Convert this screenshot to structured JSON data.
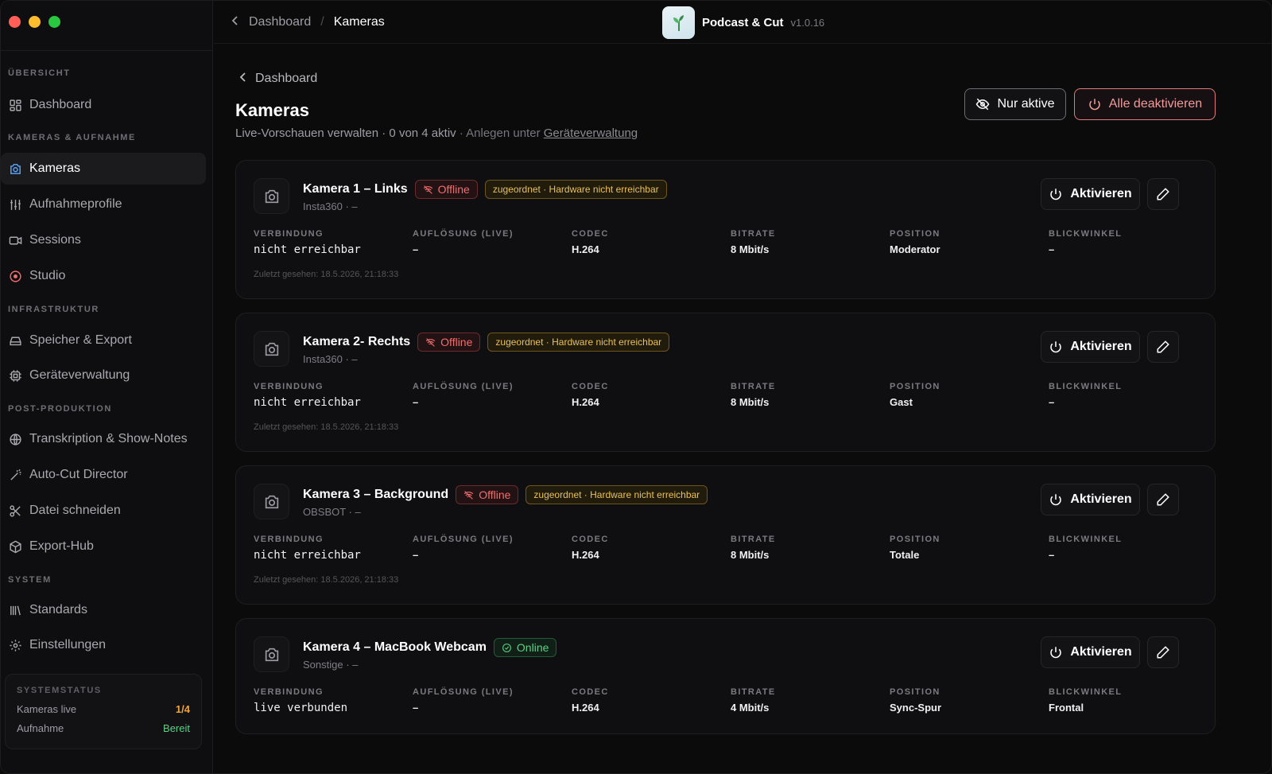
{
  "colors": {
    "accent_red": "#f16e6e",
    "accent_green": "#5ed087",
    "warn_yellow": "#e8c15a",
    "traffic_close": "#ff5f57",
    "traffic_min": "#febc2e",
    "traffic_max": "#28c840"
  },
  "sidebar": {
    "sections": [
      {
        "title": "ÜBERSICHT",
        "items": [
          {
            "label": "Dashboard",
            "icon": "grid-icon"
          }
        ]
      },
      {
        "title": "KAMERAS & AUFNAHME",
        "items": [
          {
            "label": "Kameras",
            "icon": "camera-icon",
            "active": true
          },
          {
            "label": "Aufnahmeprofile",
            "icon": "sliders-icon"
          },
          {
            "label": "Sessions",
            "icon": "video-icon"
          },
          {
            "label": "Studio",
            "icon": "record-icon"
          }
        ]
      },
      {
        "title": "INFRASTRUKTUR",
        "items": [
          {
            "label": "Speicher & Export",
            "icon": "drive-icon"
          },
          {
            "label": "Geräteverwaltung",
            "icon": "cpu-icon"
          }
        ]
      },
      {
        "title": "POST-PRODUKTION",
        "items": [
          {
            "label": "Transkription & Show-Notes",
            "icon": "globe-icon"
          },
          {
            "label": "Auto-Cut Director",
            "icon": "wand-icon"
          },
          {
            "label": "Datei schneiden",
            "icon": "scissors-icon"
          },
          {
            "label": "Export-Hub",
            "icon": "package-icon"
          }
        ]
      },
      {
        "title": "SYSTEM",
        "items": [
          {
            "label": "Standards",
            "icon": "library-icon"
          },
          {
            "label": "Einstellungen",
            "icon": "gear-icon"
          }
        ]
      }
    ],
    "status": {
      "title": "SYSTEMSTATUS",
      "rows": [
        {
          "label": "Kameras live",
          "value": "1/4"
        },
        {
          "label": "Aufnahme",
          "value": "Bereit"
        }
      ]
    }
  },
  "topbar": {
    "breadcrumb_parent": "Dashboard",
    "breadcrumb_sep": "/",
    "breadcrumb_current": "Kameras",
    "app_name": "Podcast & Cut",
    "app_version": "v1.0.16"
  },
  "page": {
    "back_label": "Dashboard",
    "title": "Kameras",
    "subtitle_main": "Live-Vorschauen verwalten · 0 von 4 aktiv",
    "subtitle_hint": " · Anlegen unter ",
    "subtitle_link": "Geräteverwaltung",
    "btn_only_active": "Nur aktive",
    "btn_deactivate_all": "Alle deaktivieren"
  },
  "field_labels": {
    "connection": "VERBINDUNG",
    "resolution": "AUFLÖSUNG (LIVE)",
    "codec": "CODEC",
    "bitrate": "BITRATE",
    "position": "POSITION",
    "angle": "BLICKWINKEL"
  },
  "activate_label": "Aktivieren",
  "cameras": [
    {
      "name": "Kamera 1 – Links",
      "status": "Offline",
      "warning": "zugeordnet · Hardware nicht erreichbar",
      "sub": "Insta360 · –",
      "connection": "nicht erreichbar",
      "resolution": "–",
      "codec": "H.264",
      "bitrate": "8 Mbit/s",
      "position": "Moderator",
      "angle": "–",
      "last_seen": "Zuletzt gesehen: 18.5.2026, 21:18:33"
    },
    {
      "name": "Kamera 2- Rechts",
      "status": "Offline",
      "warning": "zugeordnet · Hardware nicht erreichbar",
      "sub": "Insta360 · –",
      "connection": "nicht erreichbar",
      "resolution": "–",
      "codec": "H.264",
      "bitrate": "8 Mbit/s",
      "position": "Gast",
      "angle": "–",
      "last_seen": "Zuletzt gesehen: 18.5.2026, 21:18:33"
    },
    {
      "name": "Kamera 3 – Background",
      "status": "Offline",
      "warning": "zugeordnet · Hardware nicht erreichbar",
      "sub": "OBSBOT · –",
      "connection": "nicht erreichbar",
      "resolution": "–",
      "codec": "H.264",
      "bitrate": "8 Mbit/s",
      "position": "Totale",
      "angle": "–",
      "last_seen": "Zuletzt gesehen: 18.5.2026, 21:18:33"
    },
    {
      "name": "Kamera 4 – MacBook Webcam",
      "status": "Online",
      "warning": "",
      "sub": "Sonstige · –",
      "connection": "live verbunden",
      "resolution": "–",
      "codec": "H.264",
      "bitrate": "4 Mbit/s",
      "position": "Sync-Spur",
      "angle": "Frontal",
      "last_seen": ""
    }
  ]
}
